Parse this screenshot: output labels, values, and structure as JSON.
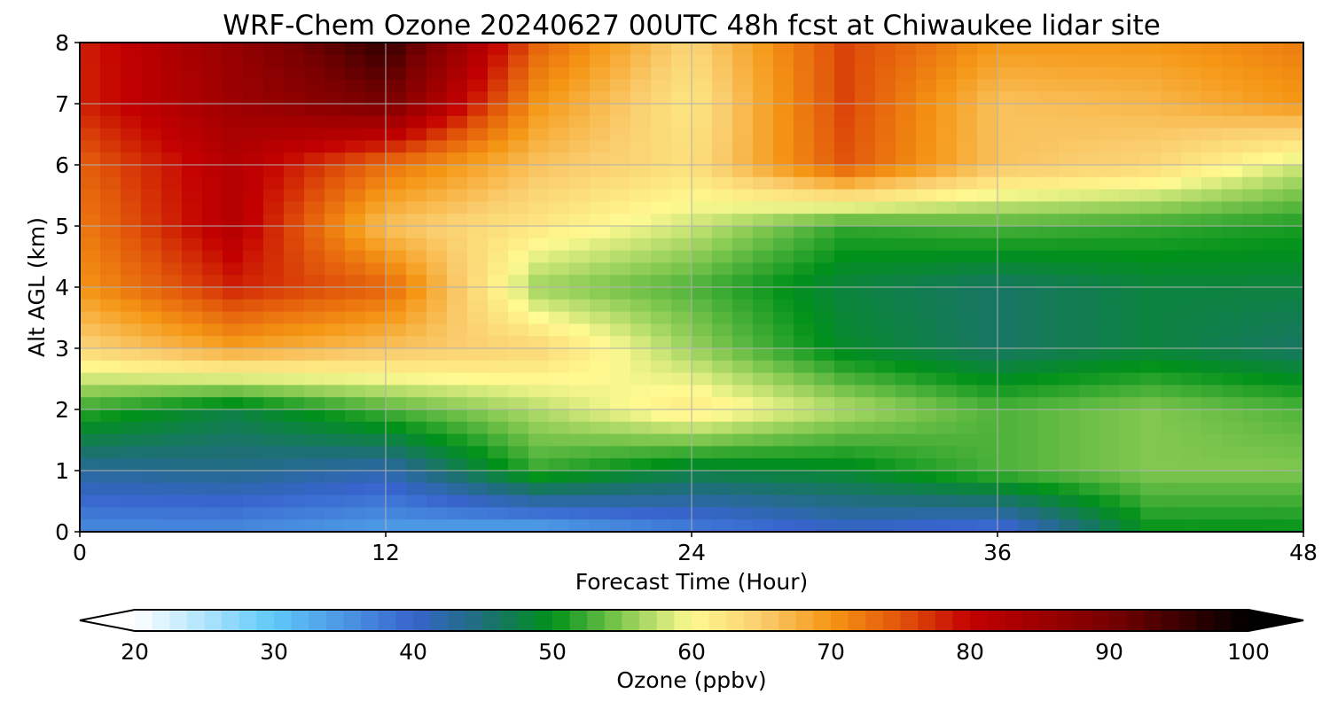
{
  "chart_data": {
    "type": "heatmap",
    "title": "WRF-Chem Ozone  20240627 00UTC 48h fcst at Chiwaukee lidar site",
    "xlabel": "Forecast Time (Hour)",
    "ylabel": "Alt AGL (km)",
    "xlim": [
      0,
      48
    ],
    "ylim": [
      0,
      8
    ],
    "xticks": [
      0,
      12,
      24,
      36,
      48
    ],
    "yticks": [
      0,
      1,
      2,
      3,
      4,
      5,
      6,
      7,
      8
    ],
    "grid": true,
    "x": [
      0,
      6,
      12,
      18,
      24,
      30,
      36,
      42,
      48
    ],
    "y": [
      0,
      1,
      2,
      3,
      4,
      5,
      6,
      7,
      8
    ],
    "z_units": "ppbv",
    "z": [
      [
        36,
        36,
        34,
        33,
        37,
        40,
        38,
        50,
        50
      ],
      [
        43,
        44,
        42,
        52,
        48,
        49,
        53,
        55,
        55
      ],
      [
        52,
        48,
        53,
        57,
        62,
        57,
        53,
        55,
        53
      ],
      [
        64,
        69,
        66,
        64,
        56,
        49,
        46,
        48,
        46
      ],
      [
        70,
        78,
        74,
        56,
        53,
        48,
        46,
        48,
        48
      ],
      [
        72,
        82,
        66,
        62,
        58,
        52,
        53,
        52,
        51
      ],
      [
        74,
        82,
        73,
        66,
        63,
        75,
        66,
        64,
        58
      ],
      [
        78,
        85,
        90,
        70,
        62,
        76,
        66,
        67,
        70
      ],
      [
        78,
        86,
        96,
        74,
        64,
        76,
        70,
        70,
        72
      ]
    ],
    "colorbar": {
      "label": "Ozone  (ppbv)",
      "min": 20,
      "max": 100,
      "ticks": [
        20,
        30,
        40,
        50,
        60,
        70,
        80,
        90,
        100
      ],
      "extend": "both"
    }
  }
}
